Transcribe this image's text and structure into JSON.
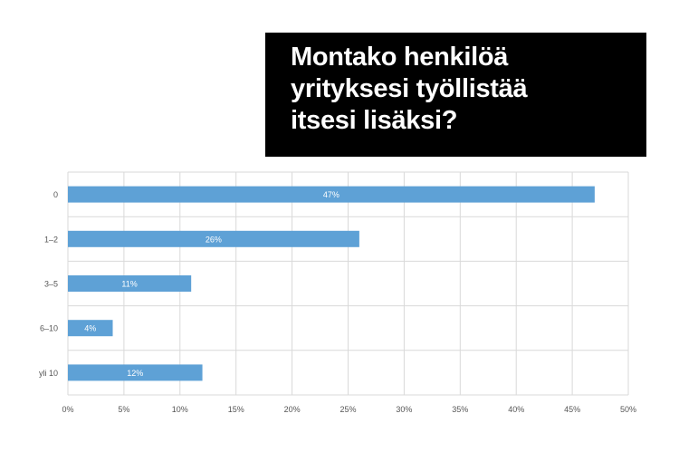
{
  "chart_data": {
    "type": "bar",
    "orientation": "horizontal",
    "title": "Montako henkilöä\nyrityksesi työllistää\nitsesi lisäksi?",
    "categories": [
      "0",
      "1–2",
      "3–5",
      "6–10",
      "yli 10"
    ],
    "values": [
      47,
      26,
      11,
      4,
      12
    ],
    "data_labels": [
      "47%",
      "26%",
      "11%",
      "4%",
      "12%"
    ],
    "x_ticks": [
      "0%",
      "5%",
      "10%",
      "15%",
      "20%",
      "25%",
      "30%",
      "35%",
      "40%",
      "45%",
      "50%"
    ],
    "xlim": [
      0,
      50
    ],
    "xlabel": "",
    "ylabel": "",
    "grid": true,
    "legend": "none",
    "colors": {
      "bar": "#5ea1d6",
      "grid": "#d9d9d9",
      "axis_text": "#555555",
      "label_text": "#ffffff",
      "title_bg": "#000000",
      "title_text": "#ffffff"
    }
  }
}
